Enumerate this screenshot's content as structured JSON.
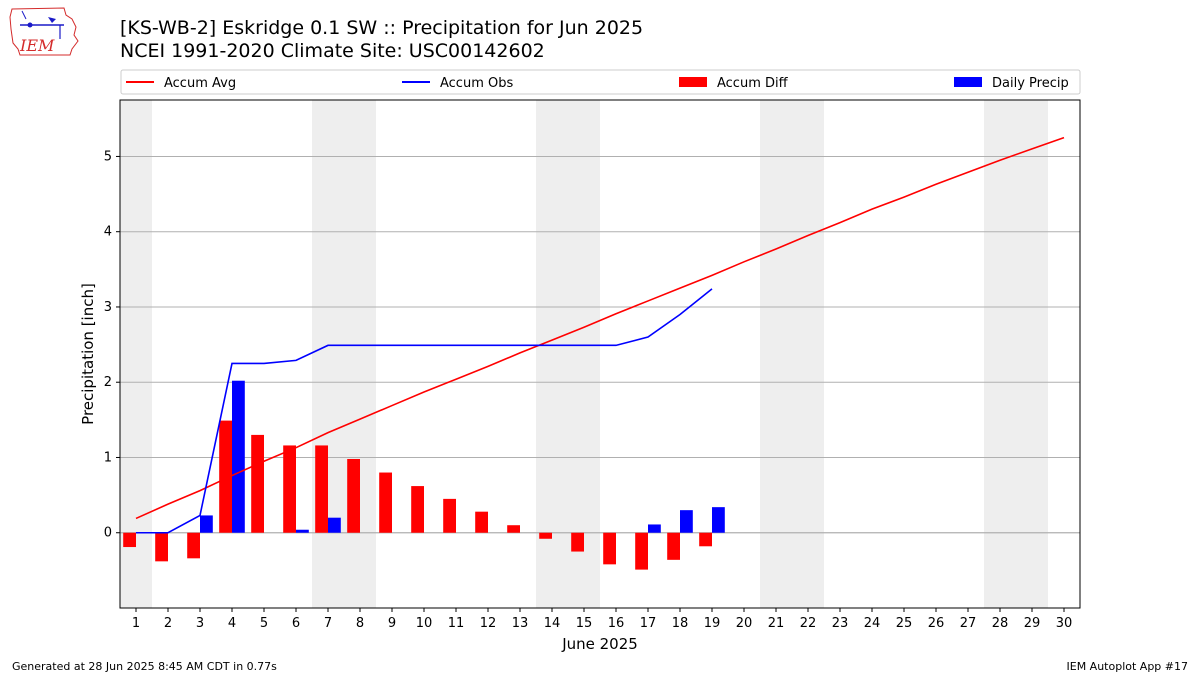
{
  "header": {
    "title_line1": "[KS-WB-2] Eskridge 0.1 SW :: Precipitation for Jun 2025",
    "title_line2": "NCEI 1991-2020 Climate Site: USC00142602",
    "logo_text": "IEM"
  },
  "footer": {
    "generated": "Generated at 28 Jun 2025 8:45 AM CDT in 0.77s",
    "app": "IEM Autoplot App #17"
  },
  "chart_data": {
    "type": "bar",
    "xlabel": "June 2025",
    "ylabel": "Precipitation [inch]",
    "xlim": [
      0.5,
      30.5
    ],
    "ylim": [
      -1.0,
      5.75
    ],
    "yticks": [
      0,
      1,
      2,
      3,
      4,
      5
    ],
    "grid": "horizontal",
    "legend_position": "top",
    "weekend_shading_days": [
      1,
      7,
      8,
      14,
      15,
      21,
      22,
      28,
      29
    ],
    "days": [
      1,
      2,
      3,
      4,
      5,
      6,
      7,
      8,
      9,
      10,
      11,
      12,
      13,
      14,
      15,
      16,
      17,
      18,
      19,
      20,
      21,
      22,
      23,
      24,
      25,
      26,
      27,
      28,
      29,
      30
    ],
    "series": [
      {
        "name": "Accum Avg",
        "kind": "line",
        "color": "#ff0000",
        "x": [
          1,
          2,
          3,
          4,
          5,
          6,
          7,
          8,
          9,
          10,
          11,
          12,
          13,
          14,
          15,
          16,
          17,
          18,
          19,
          20,
          21,
          22,
          23,
          24,
          25,
          26,
          27,
          28,
          29,
          30
        ],
        "values": [
          0.19,
          0.38,
          0.56,
          0.76,
          0.95,
          1.13,
          1.33,
          1.51,
          1.69,
          1.87,
          2.04,
          2.21,
          2.39,
          2.56,
          2.73,
          2.91,
          3.08,
          3.25,
          3.42,
          3.6,
          3.77,
          3.95,
          4.12,
          4.3,
          4.46,
          4.63,
          4.79,
          4.95,
          5.1,
          5.25
        ]
      },
      {
        "name": "Accum Obs",
        "kind": "line",
        "color": "#0000ff",
        "x": [
          1,
          2,
          3,
          4,
          5,
          6,
          7,
          8,
          9,
          10,
          11,
          12,
          13,
          14,
          15,
          16,
          17,
          18,
          19
        ],
        "values": [
          0.0,
          0.0,
          0.23,
          2.25,
          2.25,
          2.29,
          2.49,
          2.49,
          2.49,
          2.49,
          2.49,
          2.49,
          2.49,
          2.49,
          2.49,
          2.49,
          2.6,
          2.9,
          3.24
        ]
      },
      {
        "name": "Accum Diff",
        "kind": "bar",
        "color": "#ff0000",
        "x": [
          1,
          2,
          3,
          4,
          5,
          6,
          7,
          8,
          9,
          10,
          11,
          12,
          13,
          14,
          15,
          16,
          17,
          18,
          19
        ],
        "values": [
          -0.19,
          -0.38,
          -0.34,
          1.49,
          1.3,
          1.16,
          1.16,
          0.98,
          0.8,
          0.62,
          0.45,
          0.28,
          0.1,
          -0.08,
          -0.25,
          -0.42,
          -0.49,
          -0.36,
          -0.18
        ]
      },
      {
        "name": "Daily Precip",
        "kind": "bar",
        "color": "#0000ff",
        "x": [
          1,
          2,
          3,
          4,
          5,
          6,
          7,
          8,
          9,
          10,
          11,
          12,
          13,
          14,
          15,
          16,
          17,
          18,
          19
        ],
        "values": [
          0,
          0,
          0.23,
          2.02,
          0,
          0.04,
          0.2,
          0,
          0,
          0,
          0,
          0,
          0,
          0,
          0,
          0,
          0.11,
          0.3,
          0.34
        ]
      }
    ]
  }
}
